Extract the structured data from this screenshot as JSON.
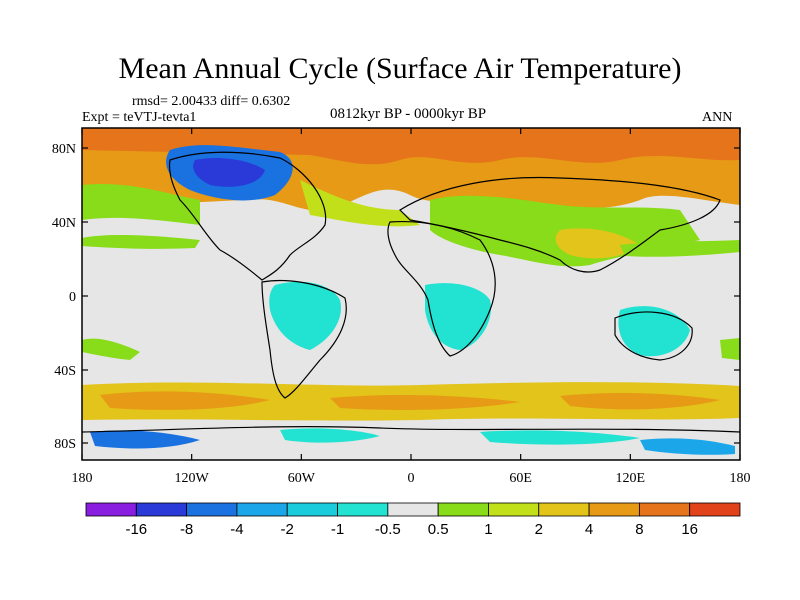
{
  "title": "Mean Annual Cycle (Surface Air Temperature)",
  "stats": "rmsd= 2.00433 diff= 0.6302",
  "experiment": "Expt = teVTJ-tevta1",
  "period": "0812kyr BP - 0000kyr BP",
  "season": "ANN",
  "lat_ticks": [
    "80N",
    "40N",
    "0",
    "40S",
    "80S"
  ],
  "lon_ticks": [
    "180",
    "120W",
    "60W",
    "0",
    "60E",
    "120E",
    "180"
  ],
  "colorbar": {
    "labels": [
      "-16",
      "-8",
      "-4",
      "-2",
      "-1",
      "-0.5",
      "0.5",
      "1",
      "2",
      "4",
      "8",
      "16"
    ],
    "colors": [
      "#8a1ee0",
      "#2a3ad8",
      "#1a72e0",
      "#1aa6e8",
      "#1accdc",
      "#22e2d2",
      "#e6e6e6",
      "#88dc1a",
      "#c2e01a",
      "#e2c41a",
      "#e69a16",
      "#e6741a",
      "#e2421a"
    ]
  }
}
